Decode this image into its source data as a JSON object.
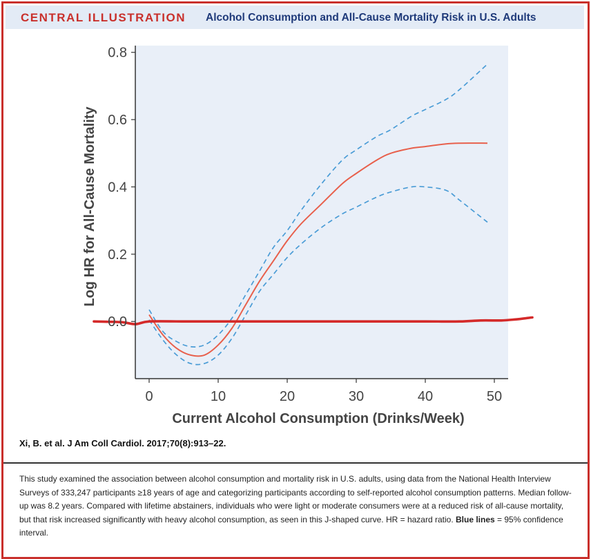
{
  "header": {
    "label": "CENTRAL ILLUSTRATION",
    "title": "Alcohol Consumption and All-Cause Mortality Risk in U.S. Adults"
  },
  "chart_data": {
    "type": "line",
    "xlabel": "Current Alcohol Consumption (Drinks/Week)",
    "ylabel": "Log HR for All-Cause Mortality",
    "xlim": [
      -2,
      52
    ],
    "ylim": [
      -0.17,
      0.82
    ],
    "xticks": [
      0,
      10,
      20,
      30,
      40,
      50
    ],
    "yticks": [
      0.0,
      0.2,
      0.4,
      0.6,
      0.8
    ],
    "ytick_labels": [
      "0.0",
      "0.2",
      "0.4",
      "0.6",
      "0.8"
    ],
    "grid": false,
    "colors": {
      "estimate": "#e8604c",
      "ci": "#4a9cd6",
      "reference": "#d42a2a",
      "plot_bg": "#e9eff8"
    },
    "series": [
      {
        "role": "estimate",
        "x": [
          0,
          2,
          4,
          6,
          8,
          10,
          12,
          14,
          16,
          18,
          20,
          22,
          25,
          28,
          30,
          33,
          35,
          38,
          40,
          43,
          45,
          49
        ],
        "y": [
          0.02,
          -0.04,
          -0.08,
          -0.1,
          -0.1,
          -0.07,
          -0.02,
          0.05,
          0.12,
          0.18,
          0.24,
          0.29,
          0.35,
          0.41,
          0.44,
          0.48,
          0.5,
          0.515,
          0.52,
          0.528,
          0.53,
          0.53
        ]
      },
      {
        "role": "ci-upper",
        "x": [
          0,
          2,
          4,
          6,
          8,
          10,
          12,
          14,
          16,
          18,
          20,
          22,
          25,
          28,
          30,
          33,
          35,
          38,
          40,
          43,
          45,
          49
        ],
        "y": [
          0.035,
          -0.03,
          -0.06,
          -0.075,
          -0.07,
          -0.04,
          0.01,
          0.08,
          0.15,
          0.22,
          0.27,
          0.33,
          0.41,
          0.48,
          0.51,
          0.55,
          0.57,
          0.61,
          0.63,
          0.66,
          0.69,
          0.765
        ]
      },
      {
        "role": "ci-lower",
        "x": [
          0,
          2,
          4,
          6,
          8,
          10,
          12,
          14,
          16,
          18,
          20,
          22,
          25,
          28,
          30,
          33,
          35,
          38,
          40,
          43,
          45,
          49
        ],
        "y": [
          0.005,
          -0.055,
          -0.1,
          -0.125,
          -0.125,
          -0.1,
          -0.05,
          0.02,
          0.09,
          0.14,
          0.19,
          0.23,
          0.28,
          0.32,
          0.34,
          0.37,
          0.385,
          0.4,
          0.4,
          0.39,
          0.36,
          0.295
        ]
      },
      {
        "role": "reference",
        "x": [
          -8,
          -4,
          -2,
          0,
          5,
          10,
          20,
          30,
          40,
          45,
          48,
          51,
          53,
          55.5
        ],
        "y": [
          0.0,
          -0.002,
          -0.008,
          0.0,
          0.0,
          0.0,
          0.0,
          0.0,
          0.0,
          0.0,
          0.003,
          0.003,
          0.006,
          0.012
        ]
      }
    ]
  },
  "citation": "Xi, B. et al. J Am Coll Cardiol. 2017;70(8):913–22.",
  "caption": {
    "text": "This study examined the association between alcohol consumption and mortality risk in U.S. adults, using data from the National Health Interview Surveys of 333,247 participants ≥18 years of age and categorizing participants according to self-reported alcohol consumption patterns. Median follow-up was 8.2 years. Compared with lifetime abstainers, individuals who were light or moderate consumers were at a reduced risk of all-cause mortality, but that risk increased significantly with heavy alcohol consumption, as seen in this J-shaped curve. HR = hazard ratio.",
    "bold": "Blue lines",
    "tail": "= 95% confidence interval."
  }
}
